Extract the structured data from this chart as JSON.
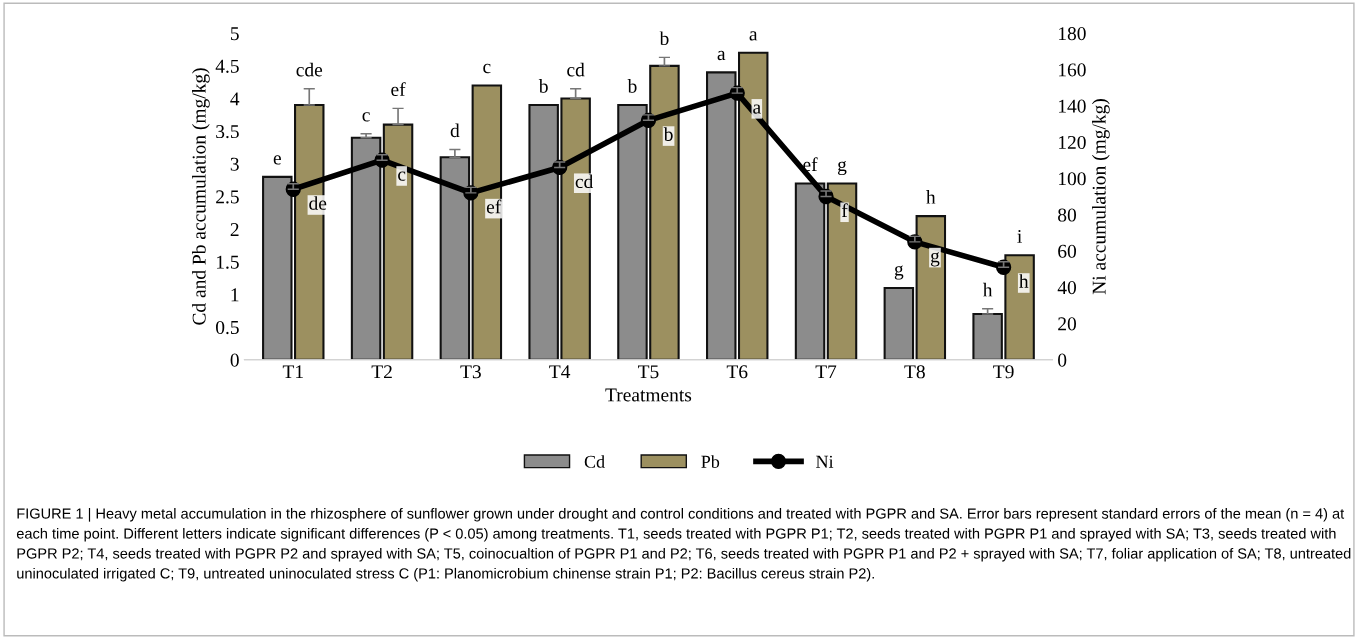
{
  "chart_data": {
    "type": "bar",
    "xlabel": "Treatments",
    "ylabel": "Cd and Pb accumulation (mg/kg)",
    "y2label": "Ni accumulation (mg/kg)",
    "categories": [
      "T1",
      "T2",
      "T3",
      "T4",
      "T5",
      "T6",
      "T7",
      "T8",
      "T9"
    ],
    "series": [
      {
        "name": "Cd",
        "color": "#8c8c8c",
        "values": [
          2.8,
          3.4,
          3.1,
          3.9,
          3.9,
          4.4,
          2.7,
          1.1,
          0.7
        ],
        "errors": [
          null,
          0.06,
          0.12,
          null,
          null,
          null,
          null,
          null,
          0.08
        ],
        "value_labels": [
          "e",
          "c",
          "d",
          "b",
          "b",
          "a",
          "ef",
          "g",
          "h"
        ]
      },
      {
        "name": "Pb",
        "color": "#9c9060",
        "values": [
          3.9,
          3.6,
          4.2,
          4.0,
          4.5,
          4.7,
          2.7,
          2.2,
          1.6
        ],
        "errors": [
          0.25,
          0.25,
          null,
          0.15,
          0.13,
          null,
          null,
          null,
          null
        ],
        "value_labels": [
          "cde",
          "ef",
          "c",
          "cd",
          "b",
          "a",
          "g",
          "h",
          "i"
        ]
      },
      {
        "name": "Ni",
        "type": "line",
        "axis": "y2",
        "color": "#000000",
        "values": [
          94,
          110,
          92,
          106,
          132,
          147,
          90,
          65,
          51
        ],
        "errors": [
          3,
          3,
          3,
          3,
          3,
          3,
          3,
          3,
          3
        ],
        "value_labels": [
          "de",
          "c",
          "ef",
          "cd",
          "b",
          "a",
          "f",
          "g",
          "h"
        ]
      }
    ],
    "ylim": [
      0,
      5
    ],
    "yticks": [
      0,
      0.5,
      1,
      1.5,
      2,
      2.5,
      3,
      3.5,
      4,
      4.5,
      5
    ],
    "y2lim": [
      0,
      180
    ],
    "y2ticks": [
      0,
      20,
      40,
      60,
      80,
      100,
      120,
      140,
      160,
      180
    ],
    "marker": "circle",
    "legend": "bottom",
    "grid": false,
    "annotations": [
      "FIGURE 1 | Heavy metal accumulation in the rhizosphere of sunflower grown under drought and control conditions and treated with PGPR and SA. Error bars represent standard errors of the mean (n = 4) at each time point. Different letters indicate significant differences (P < 0.05) among treatments. T1, seeds treated with PGPR P1; T2, seeds treated with PGPR P1 and sprayed with SA; T3, seeds treated with PGPR P2; T4, seeds treated with PGPR P2 and sprayed with SA; T5, coinocualtion of PGPR P1 and P2; T6, seeds treated with PGPR P1 and P2 + sprayed with SA; T7, foliar application of SA; T8, untreated uninoculated irrigated C; T9, untreated uninoculated stress C (P1: Planomicrobium chinense strain P1; P2: Bacillus cereus strain P2)."
    ]
  }
}
